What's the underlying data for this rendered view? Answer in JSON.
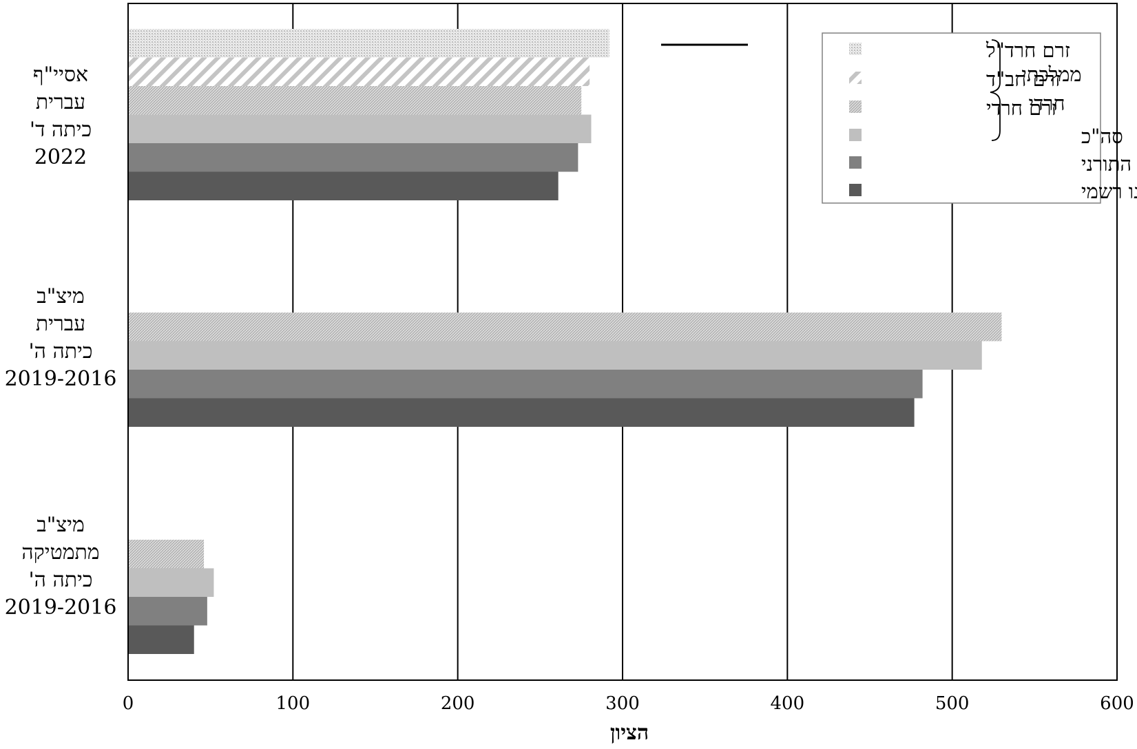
{
  "chart_data": {
    "type": "bar",
    "orientation": "horizontal",
    "xlabel": "הציון",
    "xlim": [
      0,
      600
    ],
    "xticks": [
      0,
      100,
      200,
      300,
      400,
      500,
      600
    ],
    "grid": true,
    "legend_position": "top-right",
    "categories": [
      {
        "lines": [
          "אסיי\"ף",
          "עברית",
          "כיתה ד'",
          "2022"
        ]
      },
      {
        "lines": [
          "מיצ\"ב",
          "עברית",
          "כיתה ה'",
          "2019-2016"
        ]
      },
      {
        "lines": [
          "מיצ\"ב",
          "מתמטיקה",
          "כיתה ה'",
          "2019-2016"
        ]
      }
    ],
    "series": [
      {
        "name": "זרם חרד\"ל",
        "pattern": "dots",
        "color": "#d9d9d9",
        "values": [
          292,
          null,
          null
        ]
      },
      {
        "name": "זרם חב\"ד",
        "pattern": "diagonal",
        "color": "#c8c8c8",
        "values": [
          280,
          null,
          null
        ]
      },
      {
        "name": "זרם חרדי",
        "pattern": "crosshatch",
        "color": "#c8c8c8",
        "values": [
          275,
          530,
          46
        ]
      },
      {
        "name": "סה\"כ",
        "pattern": "solid",
        "color": "#bfbfbf",
        "values": [
          281,
          518,
          52
        ]
      },
      {
        "name": "מעיין החינוך התורני",
        "pattern": "solid",
        "color": "#808080",
        "values": [
          273,
          482,
          48
        ]
      },
      {
        "name": "מוכר שאינו רשמי",
        "pattern": "solid",
        "color": "#595959",
        "values": [
          261,
          477,
          40
        ]
      }
    ],
    "legend_group_label": [
      "ממלכתי-",
      "חרדי"
    ]
  }
}
